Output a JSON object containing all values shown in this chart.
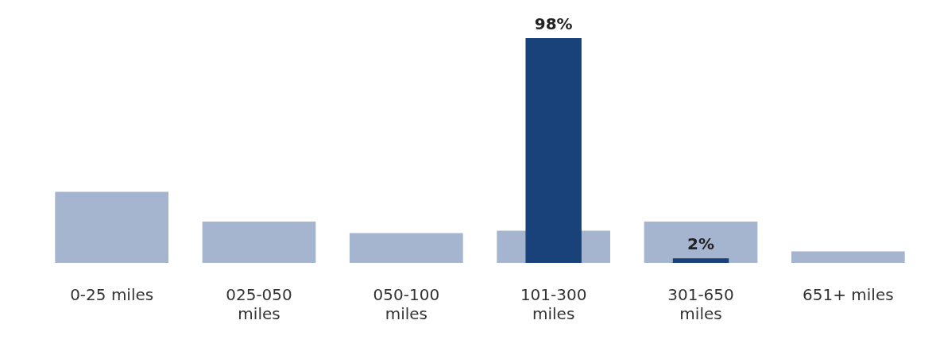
{
  "chart_data": {
    "type": "bar",
    "categories": [
      "0-25 miles",
      "025-050 miles",
      "050-100 miles",
      "101-300 miles",
      "301-650 miles",
      "651+ miles"
    ],
    "series": [
      {
        "color": "#a5b5cf",
        "values": [
          31,
          18,
          13,
          14,
          18,
          5
        ]
      },
      {
        "color": "#1a427a",
        "values": [
          null,
          null,
          null,
          98,
          2,
          null
        ],
        "value_labels": [
          null,
          null,
          null,
          "98%",
          "2%",
          null
        ]
      }
    ],
    "grid": false,
    "legend": false
  }
}
